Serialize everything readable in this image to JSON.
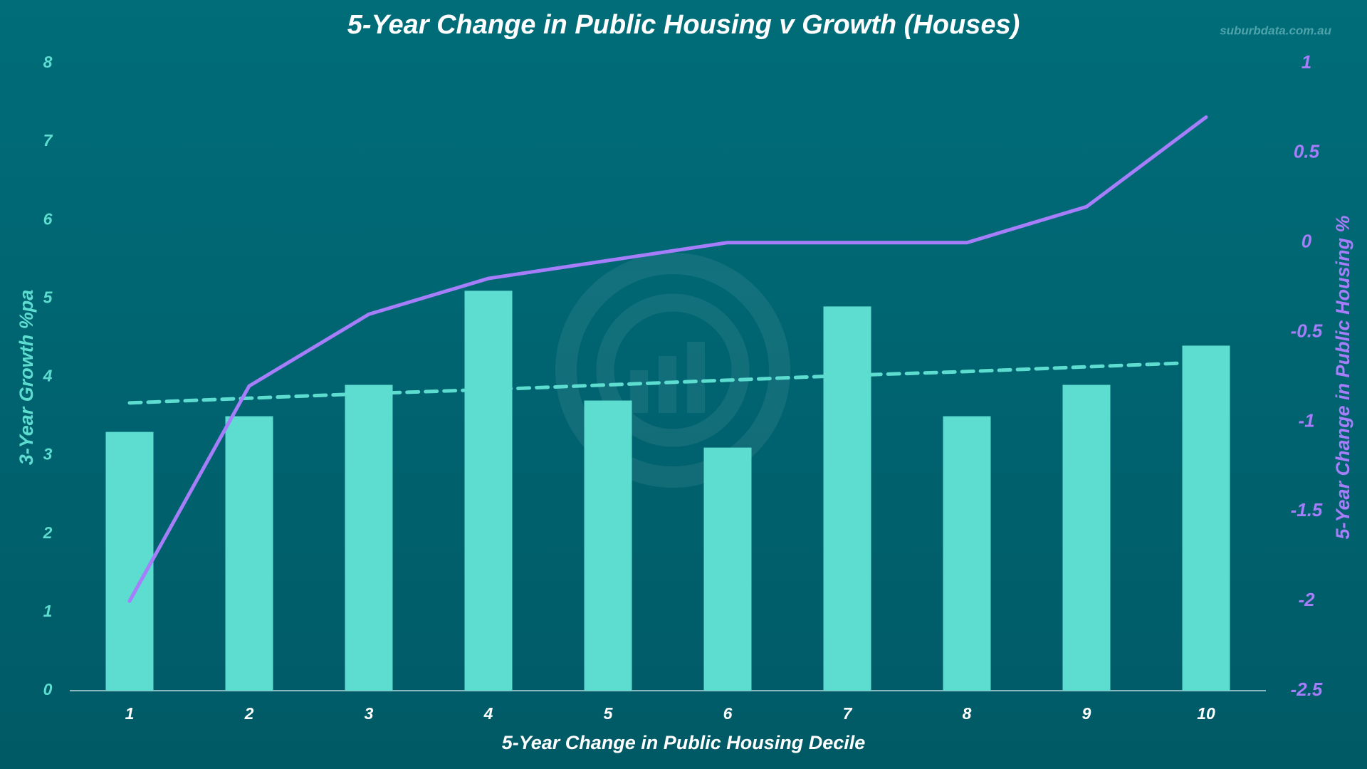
{
  "chart_data": {
    "type": "bar-line",
    "title": "5-Year Change in Public Housing v Growth (Houses)",
    "watermark": "suburbdata.com.au",
    "x_label": "5-Year Change in Public Housing Decile",
    "y_label": "3-Year Growth %pa",
    "y2_label": "5-Year Change in Public Housing %",
    "categories": [
      "1",
      "2",
      "3",
      "4",
      "5",
      "6",
      "7",
      "8",
      "9",
      "10"
    ],
    "series": [
      {
        "type": "bar",
        "axis": "y",
        "color": "#5ddcd0",
        "values": [
          3.3,
          3.5,
          3.9,
          5.1,
          3.7,
          3.1,
          4.9,
          3.5,
          3.9,
          4.4
        ]
      },
      {
        "type": "line",
        "axis": "y2",
        "color": "#a67dfa",
        "values": [
          -2,
          -0.8,
          -0.4,
          -0.2,
          -0.1,
          0,
          0,
          0,
          0.2,
          0.7
        ]
      }
    ],
    "trendline": {
      "color": "#5ddcd0",
      "values": [
        3.67,
        3.73,
        3.79,
        3.84,
        3.9,
        3.96,
        4.02,
        4.07,
        4.13,
        4.19
      ]
    },
    "ylim": [
      0,
      8
    ],
    "yticks": [
      0,
      1,
      2,
      3,
      4,
      5,
      6,
      7,
      8
    ],
    "y2lim": [
      -2.5,
      1
    ],
    "y2ticks": [
      -2.5,
      -2,
      -1.5,
      -1,
      -0.5,
      0,
      0.5,
      1
    ],
    "grid": false
  }
}
